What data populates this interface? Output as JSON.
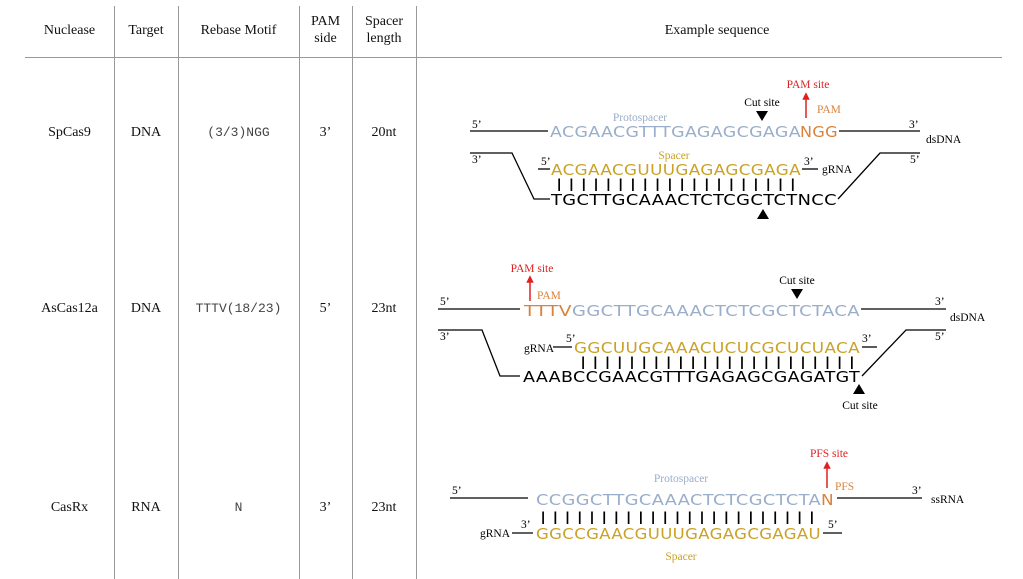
{
  "header": {
    "nuclease": "Nuclease",
    "target": "Target",
    "rebase_motif": "Rebase Motif",
    "pam_side_1": "PAM",
    "pam_side_2": "side",
    "spacer_length_1": "Spacer",
    "spacer_length_2": "length",
    "example_sequence": "Example sequence"
  },
  "rows": [
    {
      "nuclease": "SpCas9",
      "target": "DNA",
      "motif": "(3/3)NGG",
      "pam_side": "3’",
      "spacer_length": "20nt"
    },
    {
      "nuclease": "AsCas12a",
      "target": "DNA",
      "motif": "TTTV(18/23)",
      "pam_side": "5’",
      "spacer_length": "23nt"
    },
    {
      "nuclease": "CasRx",
      "target": "RNA",
      "motif": "N",
      "pam_side": "3’",
      "spacer_length": "23nt"
    }
  ],
  "colors": {
    "protospacer": "#9aaecb",
    "spacer": "#c9a227",
    "pam": "#d9823b",
    "site_arrow": "#e02020",
    "rule": "#999999"
  },
  "diagrams": {
    "spcas9": {
      "prime5": "5’",
      "prime3": "3’",
      "protospacer_label": "Protospacer",
      "cut_site": "Cut site",
      "pam_site": "PAM site",
      "pam": "PAM",
      "top_proto": "ACGAACGTTTGAGAGCGAGA",
      "top_pam": "NGG",
      "dsdna": "dsDNA",
      "spacer_label": "Spacer",
      "grna_seq": "ACGAACGUUUGAGAGCGAGA",
      "grna": "gRNA",
      "bars": "||||||||||||||||||||",
      "bottom": "TGCTTGCAAACTCTCGCTCTNCC"
    },
    "ascas12a": {
      "prime5": "5’",
      "prime3": "3’",
      "pam_site": "PAM site",
      "pam": "PAM",
      "cut_site_top": "Cut site",
      "top_pam": "TTTV",
      "top_proto": "GGCTTGCAAACTCTCGCTCTACA",
      "dsdna": "dsDNA",
      "grna": "gRNA",
      "grna_seq": "GGCUUGCAAACUCUCGCUCUACA",
      "bars": "|||||||||||||||||||||||",
      "bottom": "AAABCCGAACGTTTGAGAGCGAGATGT",
      "cut_site_bottom": "Cut site"
    },
    "casrx": {
      "prime5": "5’",
      "prime3": "3’",
      "protospacer_label": "Protospacer",
      "pfs_site": "PFS site",
      "pfs": "PFS",
      "top_proto": "CCGGCTTGCAAACTCTCGCTCTA",
      "top_pfs": "N",
      "ssrna": "ssRNA",
      "grna": "gRNA",
      "bars": "|||||||||||||||||||||||",
      "grna_seq": "GGCCGAACGUUUGAGAGCGAGAU",
      "spacer_label": "Spacer"
    }
  }
}
